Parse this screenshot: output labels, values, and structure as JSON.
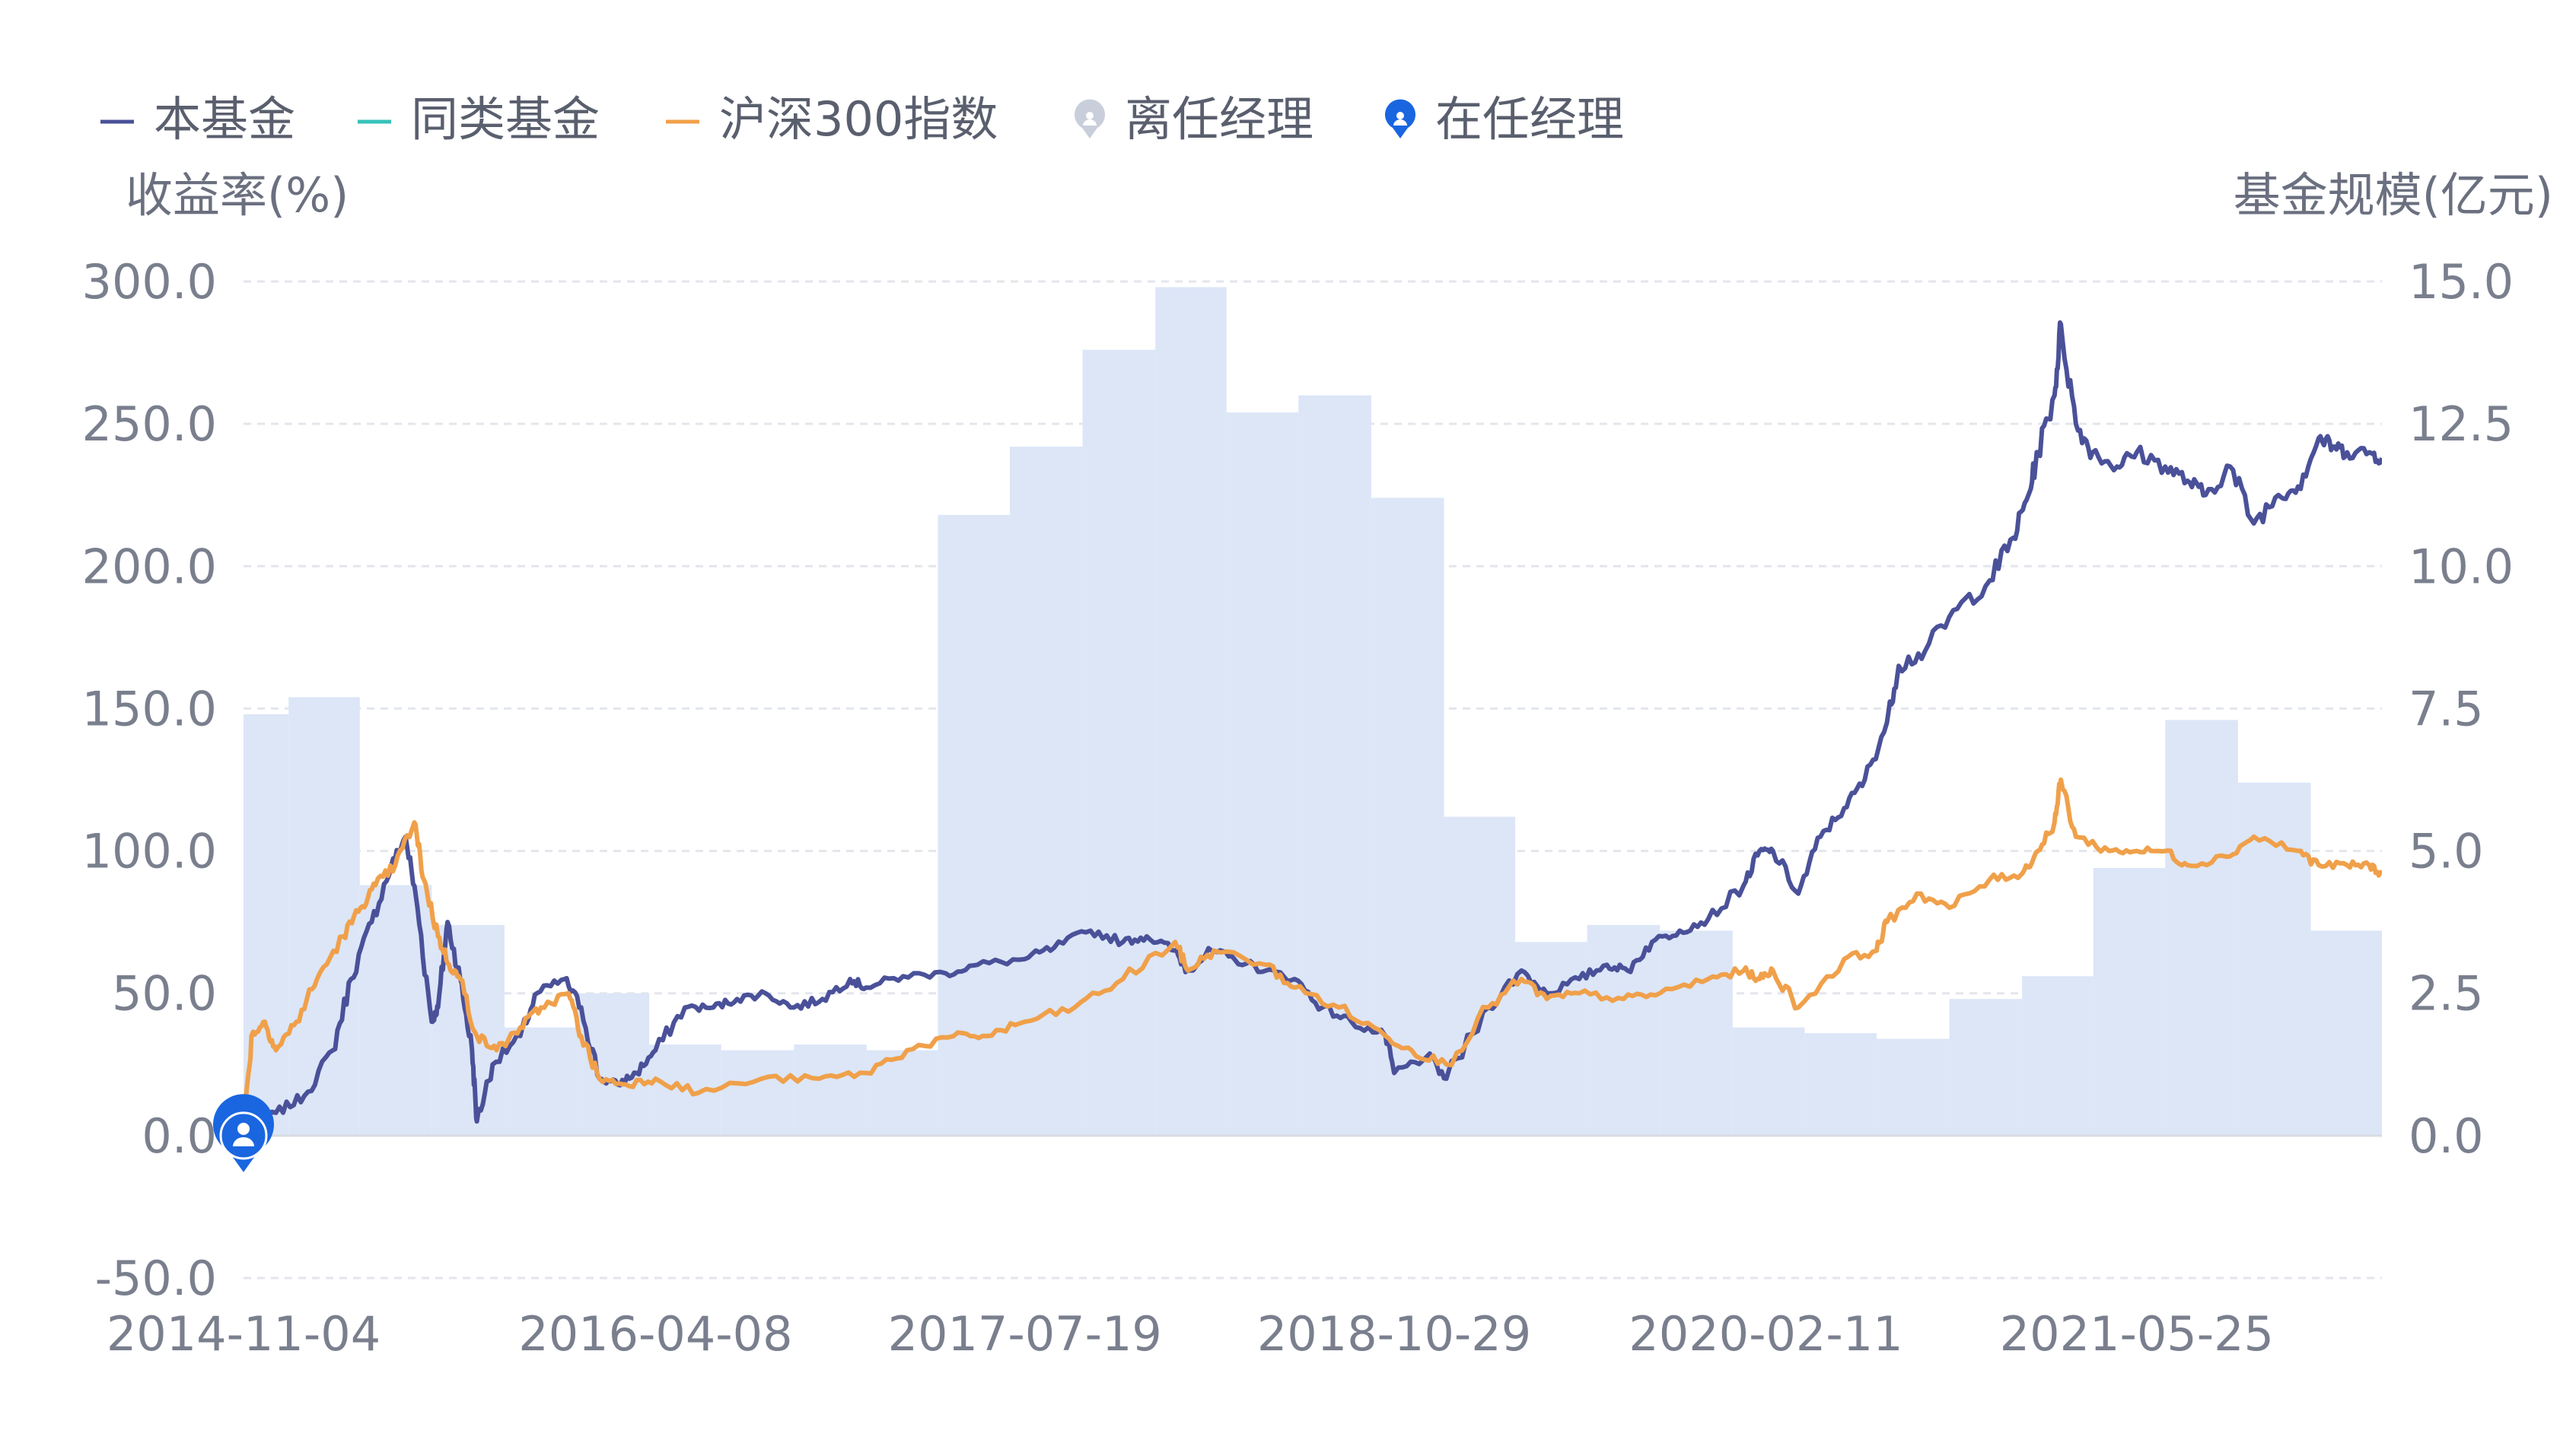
{
  "chart_data": {
    "type": "line",
    "legend": {
      "placement": "top-left",
      "items": [
        {
          "label": "本基金",
          "marker": "line",
          "color": "#4a5199"
        },
        {
          "label": "同类基金",
          "marker": "line",
          "color": "#35c2ba"
        },
        {
          "label": "沪深300指数",
          "marker": "line",
          "color": "#f0a04a"
        },
        {
          "label": "离任经理",
          "marker": "manager-pin",
          "color": "#c9cedb"
        },
        {
          "label": "在任经理",
          "marker": "manager-pin",
          "color": "#1a66e0"
        }
      ]
    },
    "left_axis": {
      "label": "收益率(%)",
      "range": [
        -50,
        300
      ],
      "ticks": [
        "300.0",
        "250.0",
        "200.0",
        "150.0",
        "100.0",
        "50.0",
        "0.0",
        "-50.0"
      ]
    },
    "right_axis": {
      "label": "基金规模(亿元)",
      "range": [
        0,
        15
      ],
      "ticks": [
        "15.0",
        "12.5",
        "10.0",
        "7.5",
        "5.0",
        "2.5",
        "0.0"
      ]
    },
    "x_axis": {
      "range": [
        "2014-11-04",
        "2022-03-31"
      ],
      "tick_labels": [
        "2014-11-04",
        "2016-04-08",
        "2017-07-19",
        "2018-10-29",
        "2020-02-11",
        "2021-05-25"
      ],
      "grid": true
    },
    "fund_size": {
      "type": "step-area",
      "color": "#dce6f7",
      "x": [
        "2014-11-04",
        "2014-12-31",
        "2015-03-31",
        "2015-06-30",
        "2015-09-30",
        "2015-12-31",
        "2016-03-31",
        "2016-06-30",
        "2016-09-30",
        "2016-12-31",
        "2017-03-31",
        "2017-06-30",
        "2017-09-30",
        "2017-12-31",
        "2018-03-31",
        "2018-06-30",
        "2018-09-30",
        "2018-12-31",
        "2019-03-31",
        "2019-06-30",
        "2019-09-30",
        "2019-12-31",
        "2020-03-31",
        "2020-06-30",
        "2020-09-30",
        "2020-12-31",
        "2021-03-31",
        "2021-06-30",
        "2021-09-30",
        "2021-12-31"
      ],
      "y": [
        7.4,
        7.7,
        4.4,
        3.7,
        1.9,
        2.5,
        1.6,
        1.5,
        1.6,
        1.5,
        10.9,
        12.1,
        13.8,
        14.9,
        12.7,
        13.0,
        11.2,
        5.6,
        3.4,
        3.7,
        3.6,
        1.9,
        1.8,
        1.7,
        2.4,
        2.8,
        4.7,
        7.3,
        6.2,
        3.6
      ]
    },
    "series": [
      {
        "name": "本基金",
        "color": "#4a5199",
        "x": [
          "2014-11-04",
          "2014-12-15",
          "2015-01-20",
          "2015-02-25",
          "2015-03-20",
          "2015-04-15",
          "2015-05-10",
          "2015-05-28",
          "2015-06-12",
          "2015-06-30",
          "2015-07-08",
          "2015-07-20",
          "2015-08-05",
          "2015-08-20",
          "2015-08-26",
          "2015-09-15",
          "2015-10-20",
          "2015-11-10",
          "2015-12-15",
          "2016-01-05",
          "2016-01-28",
          "2016-02-20",
          "2016-03-15",
          "2016-04-08",
          "2016-05-15",
          "2016-06-20",
          "2016-07-20",
          "2016-08-25",
          "2016-09-30",
          "2016-11-05",
          "2016-12-10",
          "2016-12-30",
          "2017-02-15",
          "2017-04-10",
          "2017-05-20",
          "2017-07-19",
          "2017-08-25",
          "2017-10-10",
          "2017-11-20",
          "2017-12-20",
          "2018-01-25",
          "2018-02-09",
          "2018-03-12",
          "2018-04-10",
          "2018-05-20",
          "2018-06-25",
          "2018-07-30",
          "2018-09-05",
          "2018-10-18",
          "2018-10-29",
          "2018-12-10",
          "2019-01-03",
          "2019-02-25",
          "2019-04-08",
          "2019-05-10",
          "2019-06-20",
          "2019-07-25",
          "2019-08-20",
          "2019-09-20",
          "2019-10-25",
          "2019-11-30",
          "2020-01-14",
          "2020-02-03",
          "2020-02-20",
          "2020-03-23",
          "2020-04-20",
          "2020-05-20",
          "2020-06-15",
          "2020-07-13",
          "2020-07-28",
          "2020-08-30",
          "2020-10-10",
          "2020-11-20",
          "2020-12-20",
          "2021-01-08",
          "2021-01-20",
          "2021-02-10",
          "2021-02-18",
          "2021-03-09",
          "2021-03-30",
          "2021-04-30",
          "2021-05-25",
          "2021-06-30",
          "2021-07-28",
          "2021-08-20",
          "2021-09-20",
          "2021-10-20",
          "2021-11-20",
          "2021-12-15",
          "2022-01-10",
          "2022-01-28",
          "2022-02-15",
          "2022-03-15",
          "2022-03-31"
        ],
        "y": [
          0,
          8,
          14,
          30,
          55,
          75,
          95,
          105,
          80,
          40,
          45,
          75,
          55,
          30,
          5,
          25,
          35,
          50,
          55,
          45,
          20,
          18,
          22,
          30,
          45,
          45,
          48,
          50,
          45,
          48,
          55,
          52,
          56,
          57,
          60,
          62,
          66,
          72,
          68,
          70,
          65,
          58,
          65,
          62,
          58,
          55,
          45,
          40,
          35,
          22,
          28,
          20,
          45,
          58,
          50,
          55,
          60,
          58,
          68,
          72,
          76,
          88,
          100,
          100,
          85,
          105,
          115,
          125,
          145,
          165,
          170,
          185,
          195,
          210,
          225,
          240,
          260,
          285,
          250,
          240,
          235,
          240,
          235,
          230,
          225,
          235,
          215,
          225,
          228,
          245,
          242,
          240,
          240,
          238
        ]
      },
      {
        "name": "沪深300指数",
        "color": "#f0a04a",
        "x": [
          "2014-11-04",
          "2014-11-14",
          "2014-12-01",
          "2014-12-15",
          "2015-01-10",
          "2015-02-05",
          "2015-03-10",
          "2015-04-01",
          "2015-04-20",
          "2015-05-15",
          "2015-06-08",
          "2015-06-20",
          "2015-07-08",
          "2015-07-22",
          "2015-08-05",
          "2015-08-26",
          "2015-09-20",
          "2015-10-20",
          "2015-11-15",
          "2015-12-20",
          "2016-01-05",
          "2016-01-28",
          "2016-03-01",
          "2016-04-08",
          "2016-06-01",
          "2016-08-20",
          "2016-11-01",
          "2016-12-30",
          "2017-02-20",
          "2017-04-20",
          "2017-06-01",
          "2017-07-19",
          "2017-09-20",
          "2017-11-20",
          "2018-01-25",
          "2018-02-10",
          "2018-03-15",
          "2018-05-20",
          "2018-06-25",
          "2018-08-20",
          "2018-10-18",
          "2018-11-20",
          "2019-01-03",
          "2019-02-25",
          "2019-04-08",
          "2019-05-10",
          "2019-06-20",
          "2019-08-15",
          "2019-09-30",
          "2019-11-30",
          "2020-01-14",
          "2020-02-03",
          "2020-02-20",
          "2020-03-23",
          "2020-05-20",
          "2020-06-30",
          "2020-07-13",
          "2020-08-20",
          "2020-09-30",
          "2020-11-20",
          "2020-12-31",
          "2021-01-20",
          "2021-02-10",
          "2021-02-18",
          "2021-03-09",
          "2021-04-20",
          "2021-05-25",
          "2021-06-30",
          "2021-07-28",
          "2021-09-15",
          "2021-10-20",
          "2021-12-15",
          "2022-01-10",
          "2022-02-15",
          "2022-03-15",
          "2022-03-31"
        ],
        "y": [
          0,
          35,
          40,
          30,
          40,
          55,
          70,
          80,
          88,
          95,
          110,
          90,
          70,
          60,
          55,
          35,
          30,
          38,
          45,
          50,
          35,
          20,
          18,
          20,
          15,
          20,
          20,
          22,
          30,
          35,
          35,
          40,
          45,
          55,
          68,
          58,
          65,
          60,
          52,
          45,
          35,
          30,
          25,
          45,
          55,
          48,
          50,
          48,
          50,
          55,
          58,
          55,
          58,
          45,
          62,
          65,
          75,
          85,
          80,
          90,
          92,
          100,
          110,
          125,
          105,
          100,
          100,
          100,
          95,
          98,
          105,
          100,
          95,
          95,
          95,
          92
        ]
      }
    ],
    "manager_markers": [
      {
        "status": "在任经理",
        "x": "2014-11-04",
        "y": 0
      }
    ]
  }
}
